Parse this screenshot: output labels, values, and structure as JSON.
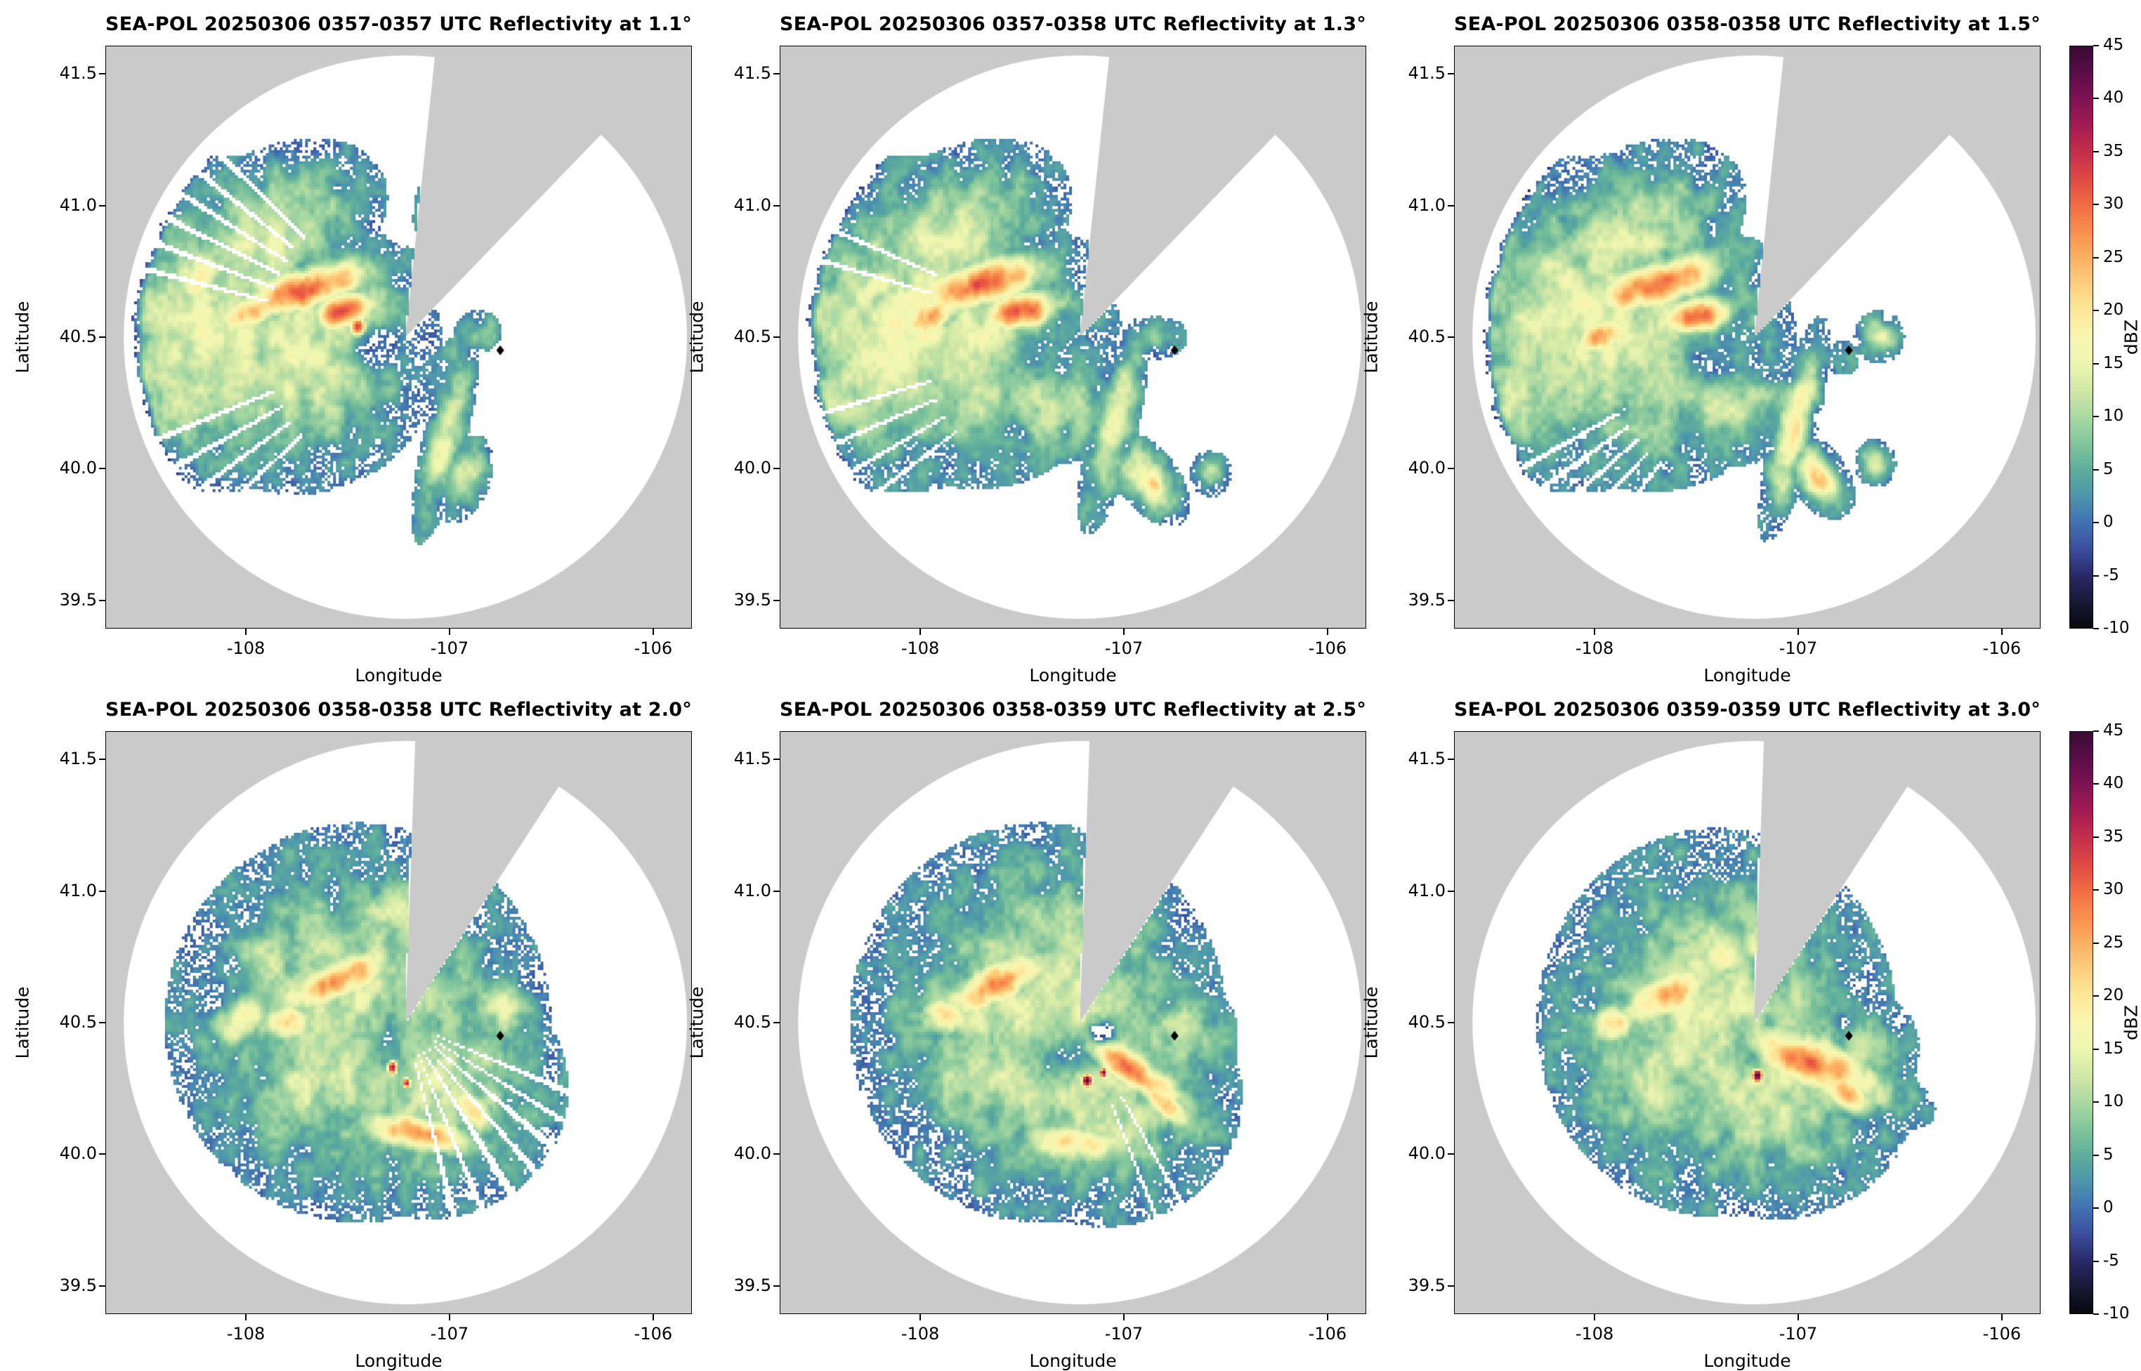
{
  "chart_data": {
    "type": "heatmap",
    "subtype": "radar_ppi_multipanel",
    "grid": {
      "rows": 2,
      "cols": 3
    },
    "axes": {
      "xlabel": "Longitude",
      "ylabel": "Latitude",
      "lon_left": -108.69,
      "lon_right": -105.81,
      "lat_top": 41.607,
      "lat_bottom": 39.393,
      "lon_ticks": [
        {
          "v": -108,
          "label": "-108"
        },
        {
          "v": -107,
          "label": "-107"
        },
        {
          "v": -106,
          "label": "-106"
        }
      ],
      "lat_ticks": [
        {
          "v": 39.5,
          "label": "39.5"
        },
        {
          "v": 40.0,
          "label": "40.0"
        },
        {
          "v": 40.5,
          "label": "40.5"
        },
        {
          "v": 41.0,
          "label": "41.0"
        },
        {
          "v": 41.5,
          "label": "41.5"
        }
      ]
    },
    "radar": {
      "name": "SEA-POL",
      "date": "20250306",
      "center_lon": -107.217,
      "center_lat": 40.5,
      "radius_lat_deg": 1.072,
      "site_marker": {
        "lon": -106.75,
        "lat": 40.45
      }
    },
    "colorbar": {
      "label": "dBZ",
      "vmin": -10,
      "vmax": 45,
      "ticks": [
        {
          "v": 45,
          "label": "45"
        },
        {
          "v": 40,
          "label": "40"
        },
        {
          "v": 35,
          "label": "35"
        },
        {
          "v": 30,
          "label": "30"
        },
        {
          "v": 25,
          "label": "25"
        },
        {
          "v": 20,
          "label": "20"
        },
        {
          "v": 15,
          "label": "15"
        },
        {
          "v": 10,
          "label": "10"
        },
        {
          "v": 5,
          "label": "5"
        },
        {
          "v": 0,
          "label": "0"
        },
        {
          "v": -5,
          "label": "-5"
        },
        {
          "v": -10,
          "label": "-10"
        }
      ],
      "stops": [
        [
          -10,
          "#08080d"
        ],
        [
          -7.5,
          "#191937"
        ],
        [
          -5,
          "#2a2a6a"
        ],
        [
          -2.5,
          "#3c4f9e"
        ],
        [
          0,
          "#4272b2"
        ],
        [
          2.5,
          "#4e96ad"
        ],
        [
          5,
          "#5fae9b"
        ],
        [
          7.5,
          "#83c69b"
        ],
        [
          10,
          "#abd9a4"
        ],
        [
          12.5,
          "#d2e8a6"
        ],
        [
          15,
          "#edf6b0"
        ],
        [
          17.5,
          "#f9f7b0"
        ],
        [
          20,
          "#fee99c"
        ],
        [
          22.5,
          "#fdd07e"
        ],
        [
          25,
          "#fcb163"
        ],
        [
          27.5,
          "#f9904f"
        ],
        [
          30,
          "#f26d44"
        ],
        [
          32.5,
          "#e04a44"
        ],
        [
          35,
          "#c62f4c"
        ],
        [
          37.5,
          "#a61c52"
        ],
        [
          40,
          "#801454"
        ],
        [
          42.5,
          "#5c0d49"
        ],
        [
          45,
          "#3a0b34"
        ]
      ]
    },
    "background_outside": "#cacaca",
    "panels": [
      {
        "title": "SEA-POL 20250306 0357-0357 UTC Reflectivity at 1.1°",
        "time_utc": "0357-0357",
        "elevation_deg": 1.1,
        "seed": 11,
        "wedge": [
          6,
          44
        ],
        "spokes_rmin": 0.5,
        "spokes": [
          [
            284,
            1.2
          ],
          [
            290,
            1.2
          ],
          [
            296,
            1.2
          ],
          [
            302,
            1.2
          ],
          [
            308,
            1.2
          ],
          [
            314,
            1.2
          ],
          [
            226,
            1.2
          ],
          [
            233,
            1.2
          ],
          [
            240,
            1.2
          ],
          [
            247,
            1.2
          ]
        ],
        "blobs": [
          [
            -108.15,
            40.55,
            0.4,
            0.3,
            0,
            15
          ],
          [
            -107.75,
            40.45,
            0.34,
            0.26,
            0,
            14
          ],
          [
            -107.9,
            40.88,
            0.3,
            0.16,
            20,
            13
          ],
          [
            -108.38,
            40.32,
            0.22,
            0.18,
            0,
            12
          ],
          [
            -107.5,
            40.58,
            0.2,
            0.16,
            0,
            13
          ],
          [
            -108.3,
            40.72,
            0.18,
            0.14,
            0,
            12
          ],
          [
            -107.08,
            40.95,
            0.05,
            0.09,
            0,
            11
          ],
          [
            -107.72,
            40.68,
            0.24,
            0.055,
            12,
            31
          ],
          [
            -107.52,
            40.6,
            0.1,
            0.05,
            8,
            33
          ],
          [
            -107.97,
            40.6,
            0.12,
            0.05,
            18,
            26
          ],
          [
            -108.22,
            40.72,
            0.1,
            0.05,
            30,
            20
          ],
          [
            -107.45,
            40.54,
            0.03,
            0.03,
            0,
            35
          ],
          [
            -107.02,
            40.12,
            0.05,
            0.2,
            -18,
            15
          ],
          [
            -106.93,
            39.96,
            0.06,
            0.09,
            -35,
            13
          ],
          [
            -107.3,
            40.42,
            0.1,
            0.07,
            0,
            6
          ],
          [
            -106.86,
            40.52,
            0.07,
            0.05,
            0,
            6
          ],
          [
            -106.96,
            40.44,
            0.05,
            0.04,
            0,
            5
          ],
          [
            -107.38,
            40.46,
            0.1,
            0.06,
            0,
            -9
          ]
        ]
      },
      {
        "title": "SEA-POL 20250306 0357-0358 UTC Reflectivity at 1.3°",
        "time_utc": "0357-0358",
        "elevation_deg": 1.3,
        "seed": 22,
        "wedge": [
          6,
          44
        ],
        "spokes_rmin": 0.55,
        "spokes": [
          [
            232,
            1
          ],
          [
            239,
            1
          ],
          [
            246,
            1
          ],
          [
            253,
            1
          ],
          [
            286,
            1
          ],
          [
            293,
            1
          ]
        ],
        "blobs": [
          [
            -108.1,
            40.55,
            0.4,
            0.3,
            0,
            15
          ],
          [
            -107.72,
            40.47,
            0.34,
            0.26,
            0,
            14
          ],
          [
            -107.85,
            40.88,
            0.3,
            0.16,
            20,
            13
          ],
          [
            -108.32,
            40.3,
            0.22,
            0.18,
            0,
            12
          ],
          [
            -107.35,
            40.26,
            0.2,
            0.12,
            0,
            12
          ],
          [
            -107.05,
            40.97,
            0.05,
            0.09,
            0,
            11
          ],
          [
            -107.7,
            40.7,
            0.24,
            0.06,
            12,
            30
          ],
          [
            -107.5,
            40.6,
            0.12,
            0.05,
            8,
            32
          ],
          [
            -107.95,
            40.58,
            0.12,
            0.05,
            18,
            25
          ],
          [
            -108.2,
            40.7,
            0.1,
            0.05,
            30,
            19
          ],
          [
            -107.05,
            40.16,
            0.055,
            0.2,
            -18,
            16
          ],
          [
            -106.88,
            39.96,
            0.11,
            0.06,
            -38,
            17
          ],
          [
            -106.85,
            39.94,
            0.05,
            0.03,
            -38,
            21
          ],
          [
            -106.57,
            39.98,
            0.05,
            0.045,
            0,
            12
          ],
          [
            -107.2,
            40.36,
            0.08,
            0.06,
            0,
            5
          ],
          [
            -106.82,
            40.5,
            0.08,
            0.05,
            0,
            6
          ],
          [
            -107.0,
            40.43,
            0.05,
            0.04,
            0,
            4
          ],
          [
            -107.45,
            40.42,
            0.11,
            0.06,
            0,
            -9
          ]
        ]
      },
      {
        "title": "SEA-POL 20250306 0358-0358 UTC Reflectivity at 1.5°",
        "time_utc": "0358-0358",
        "elevation_deg": 1.5,
        "seed": 33,
        "wedge": [
          6,
          44
        ],
        "spokes_rmin": 0.55,
        "spokes": [
          [
            216,
            1.2
          ],
          [
            222,
            1.2
          ],
          [
            228,
            1.2
          ],
          [
            234,
            1.2
          ],
          [
            240,
            1.2
          ]
        ],
        "blobs": [
          [
            -108.08,
            40.55,
            0.4,
            0.3,
            0,
            15
          ],
          [
            -107.72,
            40.46,
            0.34,
            0.26,
            0,
            14
          ],
          [
            -107.85,
            40.88,
            0.3,
            0.16,
            20,
            13
          ],
          [
            -108.3,
            40.3,
            0.22,
            0.18,
            0,
            12
          ],
          [
            -107.35,
            40.25,
            0.2,
            0.12,
            0,
            12
          ],
          [
            -107.05,
            40.96,
            0.05,
            0.09,
            0,
            11
          ],
          [
            -107.7,
            40.7,
            0.24,
            0.06,
            12,
            29
          ],
          [
            -107.5,
            40.58,
            0.12,
            0.05,
            8,
            30
          ],
          [
            -107.98,
            40.5,
            0.11,
            0.05,
            18,
            24
          ],
          [
            -107.02,
            40.15,
            0.05,
            0.2,
            -18,
            20
          ],
          [
            -106.9,
            39.97,
            0.09,
            0.055,
            -38,
            23
          ],
          [
            -106.62,
            40.02,
            0.05,
            0.045,
            0,
            13
          ],
          [
            -106.6,
            40.5,
            0.06,
            0.05,
            0,
            13
          ],
          [
            -106.78,
            40.42,
            0.05,
            0.04,
            0,
            6
          ],
          [
            -107.22,
            40.35,
            0.08,
            0.06,
            0,
            5
          ],
          [
            -107.45,
            40.42,
            0.11,
            0.06,
            0,
            -9
          ]
        ]
      },
      {
        "title": "SEA-POL 20250306 0358-0358 UTC Reflectivity at 2.0°",
        "time_utc": "0358-0358",
        "elevation_deg": 2.0,
        "seed": 44,
        "wedge": [
          2,
          33
        ],
        "spokes_rmin": 0.12,
        "spokes": [
          [
            112,
            2
          ],
          [
            121,
            1.6
          ],
          [
            129,
            2.2
          ],
          [
            138,
            1.8
          ],
          [
            147,
            2.4
          ],
          [
            157,
            1.6
          ],
          [
            165,
            1.8
          ]
        ],
        "blobs": [
          [
            -107.45,
            40.5,
            0.45,
            0.36,
            0,
            14
          ],
          [
            -107.1,
            40.25,
            0.33,
            0.24,
            0,
            13
          ],
          [
            -107.72,
            40.22,
            0.2,
            0.15,
            0,
            12
          ],
          [
            -107.28,
            40.88,
            0.18,
            0.12,
            0,
            12
          ],
          [
            -107.85,
            40.75,
            0.15,
            0.12,
            0,
            11
          ],
          [
            -106.75,
            40.55,
            0.12,
            0.09,
            0,
            12
          ],
          [
            -107.55,
            40.66,
            0.2,
            0.06,
            18,
            27
          ],
          [
            -107.78,
            40.5,
            0.08,
            0.05,
            0,
            24
          ],
          [
            -107.15,
            40.08,
            0.22,
            0.05,
            -8,
            26
          ],
          [
            -106.88,
            40.16,
            0.08,
            0.05,
            -40,
            22
          ],
          [
            -108.02,
            40.52,
            0.1,
            0.06,
            28,
            20
          ],
          [
            -107.28,
            40.33,
            0.02,
            0.02,
            0,
            43
          ],
          [
            -107.21,
            40.27,
            0.016,
            0.016,
            0,
            41
          ],
          [
            -107.32,
            40.38,
            0.09,
            0.07,
            0,
            6
          ],
          [
            -107.3,
            40.44,
            0.12,
            0.08,
            0,
            -8
          ]
        ]
      },
      {
        "title": "SEA-POL 20250306 0358-0359 UTC Reflectivity at 2.5°",
        "time_utc": "0358-0359",
        "elevation_deg": 2.5,
        "seed": 55,
        "wedge": [
          2,
          33
        ],
        "spokes_rmin": 0.3,
        "spokes": [
          [
            150,
            1.2
          ],
          [
            158,
            1
          ]
        ],
        "blobs": [
          [
            -107.42,
            40.5,
            0.44,
            0.36,
            0,
            14
          ],
          [
            -107.1,
            40.22,
            0.33,
            0.24,
            0,
            13
          ],
          [
            -107.78,
            40.32,
            0.2,
            0.17,
            0,
            12
          ],
          [
            -107.28,
            40.85,
            0.2,
            0.13,
            0,
            12
          ],
          [
            -106.72,
            40.45,
            0.14,
            0.11,
            0,
            12
          ],
          [
            -107.62,
            40.65,
            0.2,
            0.06,
            18,
            26
          ],
          [
            -107.88,
            40.52,
            0.08,
            0.05,
            0,
            22
          ],
          [
            -106.98,
            40.33,
            0.24,
            0.05,
            -28,
            29
          ],
          [
            -106.8,
            40.2,
            0.12,
            0.04,
            -32,
            24
          ],
          [
            -107.22,
            40.04,
            0.2,
            0.05,
            -6,
            20
          ],
          [
            -107.18,
            40.28,
            0.02,
            0.02,
            0,
            44
          ],
          [
            -107.1,
            40.31,
            0.015,
            0.015,
            0,
            40
          ],
          [
            -107.26,
            40.32,
            0.09,
            0.06,
            0,
            5
          ],
          [
            -107.32,
            40.38,
            0.11,
            0.07,
            0,
            -8
          ],
          [
            -107.12,
            40.45,
            0.05,
            0.035,
            0,
            -18
          ]
        ]
      },
      {
        "title": "SEA-POL 20250306 0359-0359 UTC Reflectivity at 3.0°",
        "time_utc": "0359-0359",
        "elevation_deg": 3.0,
        "seed": 66,
        "wedge": [
          2,
          33
        ],
        "spokes_rmin": 0.5,
        "spokes": [],
        "blobs": [
          [
            -107.4,
            40.5,
            0.42,
            0.35,
            0,
            14
          ],
          [
            -107.1,
            40.25,
            0.33,
            0.24,
            0,
            13
          ],
          [
            -107.72,
            40.3,
            0.2,
            0.17,
            0,
            12
          ],
          [
            -107.3,
            40.8,
            0.2,
            0.13,
            0,
            12
          ],
          [
            -106.66,
            40.4,
            0.13,
            0.11,
            0,
            11
          ],
          [
            -106.95,
            40.35,
            0.27,
            0.07,
            -18,
            29
          ],
          [
            -106.76,
            40.24,
            0.1,
            0.05,
            -32,
            26
          ],
          [
            -107.65,
            40.6,
            0.18,
            0.06,
            18,
            24
          ],
          [
            -107.92,
            40.5,
            0.08,
            0.05,
            0,
            21
          ],
          [
            -107.36,
            40.74,
            0.1,
            0.05,
            0,
            18
          ],
          [
            -107.2,
            40.3,
            0.02,
            0.02,
            0,
            44
          ],
          [
            -107.3,
            40.34,
            0.09,
            0.06,
            0,
            5
          ],
          [
            -107.24,
            40.42,
            0.1,
            0.06,
            0,
            -8
          ]
        ]
      }
    ]
  }
}
